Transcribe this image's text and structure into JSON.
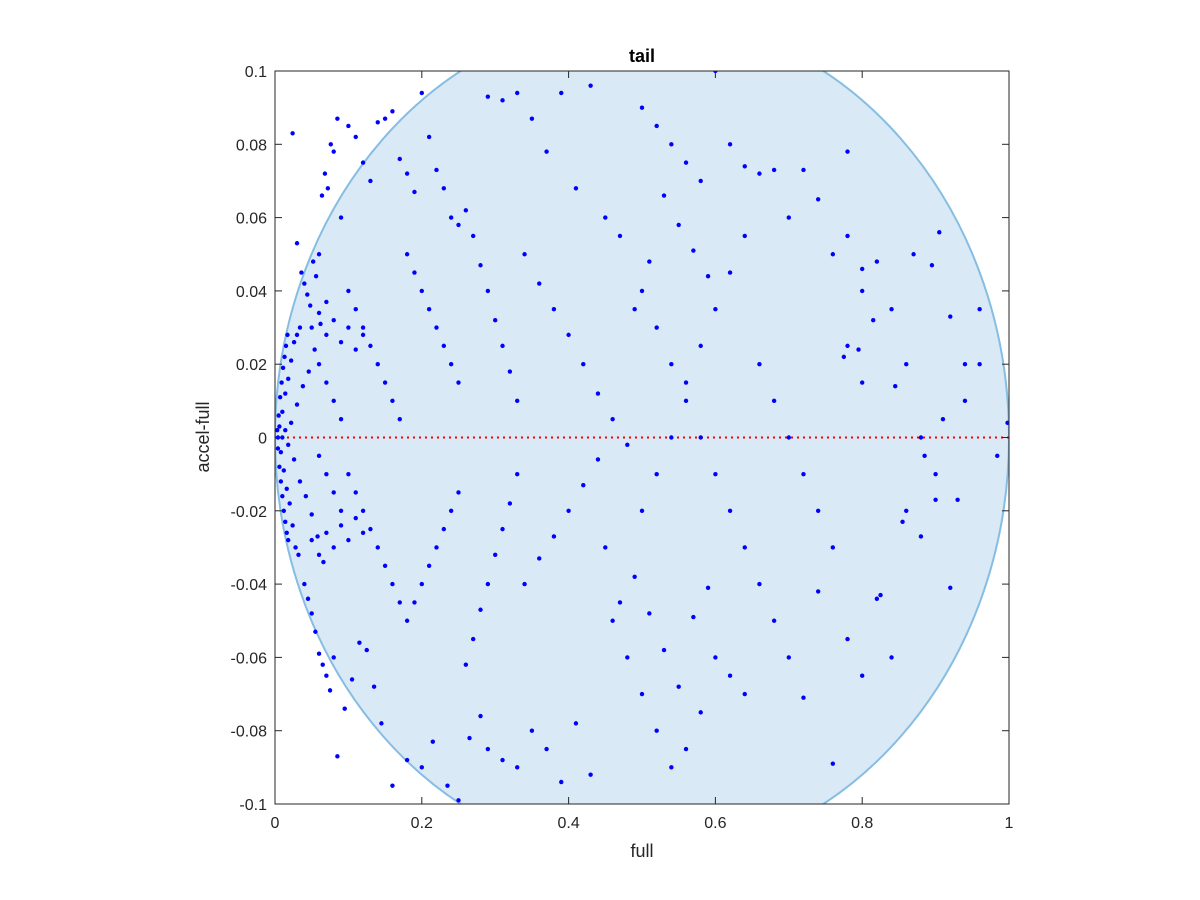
{
  "chart_data": {
    "type": "scatter",
    "title": "tail",
    "xlabel": "full",
    "ylabel": "accel-full",
    "xlim": [
      0,
      1
    ],
    "ylim": [
      -0.1,
      0.1
    ],
    "xticks": [
      0,
      0.2,
      0.4,
      0.6,
      0.8,
      1
    ],
    "xtick_labels": [
      "0",
      "0.2",
      "0.4",
      "0.6",
      "0.8",
      "1"
    ],
    "yticks": [
      -0.1,
      -0.08,
      -0.06,
      -0.04,
      -0.02,
      0,
      0.02,
      0.04,
      0.06,
      0.08,
      0.1
    ],
    "ytick_labels": [
      "-0.1",
      "-0.08",
      "-0.06",
      "-0.04",
      "-0.02",
      "0",
      "0.02",
      "0.04",
      "0.06",
      "0.08",
      "0.1"
    ],
    "grid": false,
    "reference_line": {
      "y": 0,
      "style": "dotted",
      "color": "#ff0000"
    },
    "region": {
      "shape": "ellipse",
      "fill": "#d9e9f5",
      "stroke": "#86bde2",
      "center": [
        0.5,
        0.0
      ],
      "radius_x": 0.5,
      "radius_y": 0.115
    },
    "point_color": "#0000ff",
    "points": [
      [
        0.003,
        0.002
      ],
      [
        0.004,
        -0.003
      ],
      [
        0.005,
        0.006
      ],
      [
        0.006,
        -0.008
      ],
      [
        0.007,
        0.011
      ],
      [
        0.008,
        -0.012
      ],
      [
        0.009,
        0.015
      ],
      [
        0.01,
        -0.016
      ],
      [
        0.011,
        0.019
      ],
      [
        0.012,
        -0.02
      ],
      [
        0.013,
        0.022
      ],
      [
        0.014,
        -0.023
      ],
      [
        0.015,
        0.025
      ],
      [
        0.016,
        -0.026
      ],
      [
        0.017,
        0.028
      ],
      [
        0.018,
        -0.028
      ],
      [
        0.004,
        0.0
      ],
      [
        0.006,
        0.003
      ],
      [
        0.008,
        -0.004
      ],
      [
        0.01,
        0.007
      ],
      [
        0.012,
        -0.009
      ],
      [
        0.014,
        0.012
      ],
      [
        0.016,
        -0.014
      ],
      [
        0.018,
        0.016
      ],
      [
        0.02,
        -0.018
      ],
      [
        0.022,
        0.021
      ],
      [
        0.024,
        -0.024
      ],
      [
        0.026,
        0.026
      ],
      [
        0.028,
        -0.03
      ],
      [
        0.03,
        0.028
      ],
      [
        0.032,
        -0.032
      ],
      [
        0.034,
        0.03
      ],
      [
        0.01,
        0.0
      ],
      [
        0.014,
        0.002
      ],
      [
        0.018,
        -0.002
      ],
      [
        0.022,
        0.004
      ],
      [
        0.026,
        -0.006
      ],
      [
        0.03,
        0.009
      ],
      [
        0.034,
        -0.012
      ],
      [
        0.038,
        0.014
      ],
      [
        0.042,
        -0.016
      ],
      [
        0.046,
        0.018
      ],
      [
        0.05,
        -0.021
      ],
      [
        0.054,
        0.024
      ],
      [
        0.058,
        -0.027
      ],
      [
        0.062,
        0.031
      ],
      [
        0.066,
        -0.034
      ],
      [
        0.07,
        0.037
      ],
      [
        0.024,
        0.083
      ],
      [
        0.03,
        0.053
      ],
      [
        0.036,
        0.045
      ],
      [
        0.04,
        0.042
      ],
      [
        0.044,
        0.039
      ],
      [
        0.048,
        0.036
      ],
      [
        0.052,
        0.048
      ],
      [
        0.056,
        0.044
      ],
      [
        0.06,
        0.05
      ],
      [
        0.064,
        0.066
      ],
      [
        0.068,
        0.072
      ],
      [
        0.072,
        0.068
      ],
      [
        0.076,
        0.08
      ],
      [
        0.08,
        0.078
      ],
      [
        0.085,
        0.087
      ],
      [
        0.09,
        0.06
      ],
      [
        0.04,
        -0.04
      ],
      [
        0.045,
        -0.044
      ],
      [
        0.05,
        -0.048
      ],
      [
        0.055,
        -0.053
      ],
      [
        0.06,
        -0.059
      ],
      [
        0.065,
        -0.062
      ],
      [
        0.07,
        -0.065
      ],
      [
        0.075,
        -0.069
      ],
      [
        0.08,
        -0.06
      ],
      [
        0.085,
        -0.087
      ],
      [
        0.095,
        -0.074
      ],
      [
        0.105,
        -0.066
      ],
      [
        0.115,
        -0.056
      ],
      [
        0.125,
        -0.058
      ],
      [
        0.135,
        -0.068
      ],
      [
        0.145,
        -0.078
      ],
      [
        0.16,
        -0.095
      ],
      [
        0.18,
        -0.088
      ],
      [
        0.2,
        -0.09
      ],
      [
        0.215,
        -0.083
      ],
      [
        0.235,
        -0.095
      ],
      [
        0.25,
        -0.099
      ],
      [
        0.265,
        -0.082
      ],
      [
        0.28,
        -0.076
      ],
      [
        0.1,
        0.085
      ],
      [
        0.11,
        0.082
      ],
      [
        0.12,
        0.075
      ],
      [
        0.13,
        0.07
      ],
      [
        0.14,
        0.086
      ],
      [
        0.15,
        0.087
      ],
      [
        0.16,
        0.089
      ],
      [
        0.17,
        0.076
      ],
      [
        0.18,
        0.072
      ],
      [
        0.19,
        0.067
      ],
      [
        0.2,
        0.094
      ],
      [
        0.21,
        0.082
      ],
      [
        0.22,
        0.073
      ],
      [
        0.23,
        0.068
      ],
      [
        0.24,
        0.06
      ],
      [
        0.25,
        0.058
      ],
      [
        0.1,
        0.04
      ],
      [
        0.11,
        0.035
      ],
      [
        0.12,
        0.03
      ],
      [
        0.13,
        0.025
      ],
      [
        0.14,
        0.02
      ],
      [
        0.15,
        0.015
      ],
      [
        0.16,
        0.01
      ],
      [
        0.17,
        0.005
      ],
      [
        0.1,
        -0.01
      ],
      [
        0.11,
        -0.015
      ],
      [
        0.12,
        -0.02
      ],
      [
        0.13,
        -0.025
      ],
      [
        0.14,
        -0.03
      ],
      [
        0.15,
        -0.035
      ],
      [
        0.16,
        -0.04
      ],
      [
        0.17,
        -0.045
      ],
      [
        0.06,
        0.02
      ],
      [
        0.07,
        0.015
      ],
      [
        0.08,
        0.01
      ],
      [
        0.09,
        0.005
      ],
      [
        0.06,
        -0.005
      ],
      [
        0.07,
        -0.01
      ],
      [
        0.08,
        -0.015
      ],
      [
        0.09,
        -0.02
      ],
      [
        0.05,
        0.03
      ],
      [
        0.06,
        0.034
      ],
      [
        0.07,
        0.028
      ],
      [
        0.08,
        0.032
      ],
      [
        0.09,
        0.026
      ],
      [
        0.1,
        0.03
      ],
      [
        0.11,
        0.024
      ],
      [
        0.12,
        0.028
      ],
      [
        0.05,
        -0.028
      ],
      [
        0.06,
        -0.032
      ],
      [
        0.07,
        -0.026
      ],
      [
        0.08,
        -0.03
      ],
      [
        0.09,
        -0.024
      ],
      [
        0.1,
        -0.028
      ],
      [
        0.11,
        -0.022
      ],
      [
        0.12,
        -0.026
      ],
      [
        0.18,
        0.05
      ],
      [
        0.19,
        0.045
      ],
      [
        0.2,
        0.04
      ],
      [
        0.21,
        0.035
      ],
      [
        0.22,
        0.03
      ],
      [
        0.23,
        0.025
      ],
      [
        0.24,
        0.02
      ],
      [
        0.25,
        0.015
      ],
      [
        0.18,
        -0.05
      ],
      [
        0.19,
        -0.045
      ],
      [
        0.2,
        -0.04
      ],
      [
        0.21,
        -0.035
      ],
      [
        0.22,
        -0.03
      ],
      [
        0.23,
        -0.025
      ],
      [
        0.24,
        -0.02
      ],
      [
        0.25,
        -0.015
      ],
      [
        0.26,
        0.062
      ],
      [
        0.27,
        0.055
      ],
      [
        0.28,
        0.047
      ],
      [
        0.29,
        0.04
      ],
      [
        0.3,
        0.032
      ],
      [
        0.31,
        0.025
      ],
      [
        0.32,
        0.018
      ],
      [
        0.33,
        0.01
      ],
      [
        0.26,
        -0.062
      ],
      [
        0.27,
        -0.055
      ],
      [
        0.28,
        -0.047
      ],
      [
        0.29,
        -0.04
      ],
      [
        0.3,
        -0.032
      ],
      [
        0.31,
        -0.025
      ],
      [
        0.32,
        -0.018
      ],
      [
        0.33,
        -0.01
      ],
      [
        0.29,
        0.093
      ],
      [
        0.31,
        0.092
      ],
      [
        0.33,
        0.094
      ],
      [
        0.35,
        0.087
      ],
      [
        0.37,
        0.078
      ],
      [
        0.39,
        0.094
      ],
      [
        0.41,
        0.068
      ],
      [
        0.43,
        0.096
      ],
      [
        0.29,
        -0.085
      ],
      [
        0.31,
        -0.088
      ],
      [
        0.33,
        -0.09
      ],
      [
        0.35,
        -0.08
      ],
      [
        0.37,
        -0.085
      ],
      [
        0.39,
        -0.094
      ],
      [
        0.41,
        -0.078
      ],
      [
        0.43,
        -0.092
      ],
      [
        0.34,
        0.05
      ],
      [
        0.36,
        0.042
      ],
      [
        0.38,
        0.035
      ],
      [
        0.4,
        0.028
      ],
      [
        0.42,
        0.02
      ],
      [
        0.44,
        0.012
      ],
      [
        0.46,
        0.005
      ],
      [
        0.48,
        -0.002
      ],
      [
        0.34,
        -0.04
      ],
      [
        0.36,
        -0.033
      ],
      [
        0.38,
        -0.027
      ],
      [
        0.4,
        -0.02
      ],
      [
        0.42,
        -0.013
      ],
      [
        0.44,
        -0.006
      ],
      [
        0.46,
        -0.05
      ],
      [
        0.48,
        -0.06
      ],
      [
        0.5,
        0.09
      ],
      [
        0.52,
        0.085
      ],
      [
        0.54,
        0.08
      ],
      [
        0.56,
        0.075
      ],
      [
        0.58,
        0.07
      ],
      [
        0.6,
        0.1
      ],
      [
        0.62,
        0.08
      ],
      [
        0.64,
        0.074
      ],
      [
        0.5,
        -0.07
      ],
      [
        0.52,
        -0.08
      ],
      [
        0.54,
        -0.09
      ],
      [
        0.56,
        -0.085
      ],
      [
        0.58,
        -0.075
      ],
      [
        0.6,
        -0.06
      ],
      [
        0.62,
        -0.065
      ],
      [
        0.64,
        -0.07
      ],
      [
        0.5,
        0.04
      ],
      [
        0.52,
        0.03
      ],
      [
        0.54,
        0.02
      ],
      [
        0.56,
        0.01
      ],
      [
        0.58,
        0.0
      ],
      [
        0.6,
        -0.01
      ],
      [
        0.62,
        -0.02
      ],
      [
        0.64,
        -0.03
      ],
      [
        0.5,
        -0.02
      ],
      [
        0.52,
        -0.01
      ],
      [
        0.54,
        0.0
      ],
      [
        0.56,
        0.015
      ],
      [
        0.58,
        0.025
      ],
      [
        0.6,
        0.035
      ],
      [
        0.62,
        0.045
      ],
      [
        0.64,
        0.055
      ],
      [
        0.66,
        0.072
      ],
      [
        0.68,
        0.073
      ],
      [
        0.7,
        0.06
      ],
      [
        0.72,
        0.073
      ],
      [
        0.74,
        0.065
      ],
      [
        0.76,
        0.05
      ],
      [
        0.78,
        0.055
      ],
      [
        0.8,
        0.04
      ],
      [
        0.66,
        -0.04
      ],
      [
        0.68,
        -0.05
      ],
      [
        0.7,
        -0.06
      ],
      [
        0.72,
        -0.071
      ],
      [
        0.74,
        -0.042
      ],
      [
        0.76,
        -0.089
      ],
      [
        0.78,
        -0.055
      ],
      [
        0.8,
        -0.065
      ],
      [
        0.66,
        0.02
      ],
      [
        0.68,
        0.01
      ],
      [
        0.7,
        0.0
      ],
      [
        0.72,
        -0.01
      ],
      [
        0.74,
        -0.02
      ],
      [
        0.76,
        -0.03
      ],
      [
        0.78,
        0.025
      ],
      [
        0.8,
        0.015
      ],
      [
        0.82,
        0.048
      ],
      [
        0.84,
        0.035
      ],
      [
        0.86,
        0.02
      ],
      [
        0.88,
        0.0
      ],
      [
        0.9,
        -0.017
      ],
      [
        0.92,
        0.033
      ],
      [
        0.94,
        0.02
      ],
      [
        0.96,
        0.035
      ],
      [
        0.82,
        -0.044
      ],
      [
        0.84,
        -0.06
      ],
      [
        0.86,
        -0.02
      ],
      [
        0.88,
        -0.027
      ],
      [
        0.9,
        -0.01
      ],
      [
        0.92,
        -0.041
      ],
      [
        0.94,
        0.01
      ],
      [
        0.96,
        0.02
      ],
      [
        0.78,
        0.078
      ],
      [
        0.8,
        0.046
      ],
      [
        0.87,
        0.05
      ],
      [
        0.895,
        0.047
      ],
      [
        0.91,
        0.005
      ],
      [
        0.93,
        -0.017
      ],
      [
        0.984,
        -0.005
      ],
      [
        0.998,
        0.004
      ],
      [
        0.905,
        0.056
      ],
      [
        0.885,
        -0.005
      ],
      [
        0.855,
        -0.023
      ],
      [
        0.845,
        0.014
      ],
      [
        0.825,
        -0.043
      ],
      [
        0.815,
        0.032
      ],
      [
        0.795,
        0.024
      ],
      [
        0.775,
        0.022
      ],
      [
        0.45,
        0.06
      ],
      [
        0.47,
        0.055
      ],
      [
        0.49,
        0.035
      ],
      [
        0.51,
        0.048
      ],
      [
        0.53,
        0.066
      ],
      [
        0.55,
        0.058
      ],
      [
        0.57,
        0.051
      ],
      [
        0.59,
        0.044
      ],
      [
        0.45,
        -0.03
      ],
      [
        0.47,
        -0.045
      ],
      [
        0.49,
        -0.038
      ],
      [
        0.51,
        -0.048
      ],
      [
        0.53,
        -0.058
      ],
      [
        0.55,
        -0.068
      ],
      [
        0.57,
        -0.049
      ],
      [
        0.59,
        -0.041
      ]
    ]
  }
}
